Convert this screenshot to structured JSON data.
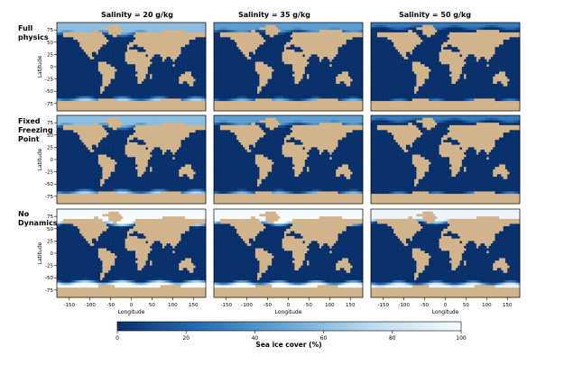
{
  "chart_data": {
    "type": "heatmap",
    "columns": [
      "Salinity = 20 g/kg",
      "Salinity = 35 g/kg",
      "Salinity = 50 g/kg"
    ],
    "rows": [
      "Full physics",
      "Fixed Freezing Point",
      "No Dynamics"
    ],
    "xlabel": "Longitude",
    "ylabel": "Latitude",
    "xlim": [
      -180,
      180
    ],
    "ylim": [
      -90,
      90
    ],
    "xticks": [
      -150,
      -100,
      -50,
      0,
      50,
      100,
      150
    ],
    "yticks": [
      75,
      50,
      25,
      0,
      -25,
      -50,
      -75
    ],
    "colorbar": {
      "label": "Sea ice cover (%)",
      "ticks": [
        0,
        20,
        40,
        60,
        80,
        100
      ],
      "range": [
        0,
        100
      ],
      "colors": [
        "#08306b",
        "#2a6fb3",
        "#6aa9d6",
        "#c0dcef",
        "#f7fbff"
      ]
    },
    "land_color": "#d2b48c",
    "panels": [
      {
        "row": 0,
        "col": 0,
        "north_ice_lat": 62,
        "north_fade": 10,
        "north_max": 60,
        "south_ice_lat": -62,
        "south_fade": 8,
        "south_max": 70
      },
      {
        "row": 0,
        "col": 1,
        "north_ice_lat": 68,
        "north_fade": 8,
        "north_max": 45,
        "south_ice_lat": -64,
        "south_fade": 7,
        "south_max": 60
      },
      {
        "row": 0,
        "col": 2,
        "north_ice_lat": 76,
        "north_fade": 6,
        "north_max": 30,
        "south_ice_lat": -67,
        "south_fade": 6,
        "south_max": 50
      },
      {
        "row": 1,
        "col": 0,
        "north_ice_lat": 62,
        "north_fade": 10,
        "north_max": 60,
        "south_ice_lat": -62,
        "south_fade": 8,
        "south_max": 70
      },
      {
        "row": 1,
        "col": 1,
        "north_ice_lat": 68,
        "north_fade": 8,
        "north_max": 45,
        "south_ice_lat": -64,
        "south_fade": 7,
        "south_max": 60
      },
      {
        "row": 1,
        "col": 2,
        "north_ice_lat": 76,
        "north_fade": 6,
        "north_max": 30,
        "south_ice_lat": -67,
        "south_fade": 6,
        "south_max": 50
      },
      {
        "row": 2,
        "col": 0,
        "north_ice_lat": 55,
        "north_fade": 8,
        "north_max": 100,
        "south_ice_lat": -55,
        "south_fade": 8,
        "south_max": 100
      },
      {
        "row": 2,
        "col": 1,
        "north_ice_lat": 57,
        "north_fade": 8,
        "north_max": 100,
        "south_ice_lat": -57,
        "south_fade": 8,
        "south_max": 100
      },
      {
        "row": 2,
        "col": 2,
        "north_ice_lat": 60,
        "north_fade": 8,
        "north_max": 95,
        "south_ice_lat": -58,
        "south_fade": 8,
        "south_max": 95
      }
    ]
  }
}
